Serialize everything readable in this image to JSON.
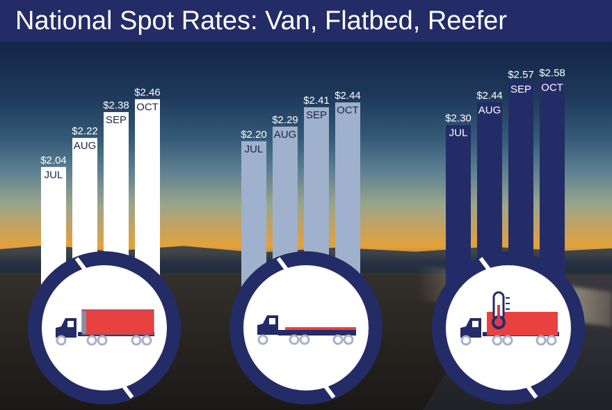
{
  "header": {
    "title": "National Spot Rates: Van, Flatbed, Reefer"
  },
  "colors": {
    "header_bg": "#232c66",
    "van": "#ffffff",
    "flatbed": "#9fb1cc",
    "reefer": "#232c66",
    "circle_ring": "#232c66",
    "trailer_red": "#e8413f"
  },
  "chart_data": {
    "type": "bar",
    "title": "National Spot Rates: Van, Flatbed, Reefer",
    "categories": [
      "JUL",
      "AUG",
      "SEP",
      "OCT"
    ],
    "series": [
      {
        "name": "",
        "icon": "van-truck-icon",
        "values": [
          2.04,
          2.22,
          2.38,
          2.46
        ],
        "labels": [
          "$2.04",
          "$2.22",
          "$2.38",
          "$2.46"
        ]
      },
      {
        "name": "",
        "icon": "flatbed-truck-icon",
        "values": [
          2.2,
          2.29,
          2.41,
          2.44
        ],
        "labels": [
          "$2.20",
          "$2.29",
          "$2.41",
          "$2.44"
        ]
      },
      {
        "name": "",
        "icon": "reefer-truck-icon",
        "values": [
          2.3,
          2.44,
          2.57,
          2.58
        ],
        "labels": [
          "$2.30",
          "$2.44",
          "$2.57",
          "$2.58"
        ]
      }
    ],
    "xlabel": "",
    "ylabel": "",
    "grid": false,
    "legend": "none"
  }
}
